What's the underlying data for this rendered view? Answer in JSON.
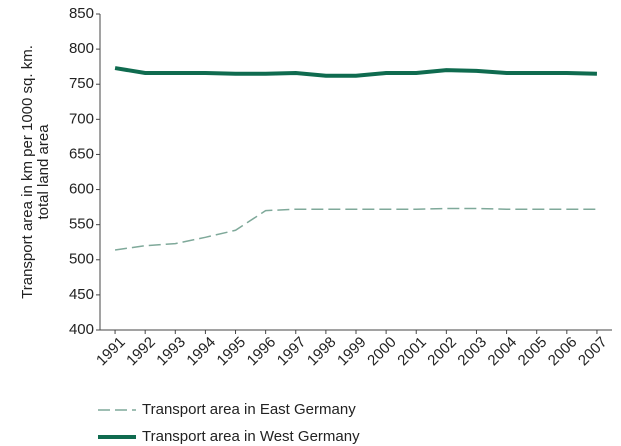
{
  "chart_data": {
    "type": "line",
    "ylabel": [
      "Transport area in km per 1000 sq. km.",
      "total land area"
    ],
    "categories": [
      "1991",
      "1992",
      "1993",
      "1994",
      "1995",
      "1996",
      "1997",
      "1998",
      "1999",
      "2000",
      "2001",
      "2002",
      "2003",
      "2004",
      "2005",
      "2006",
      "2007"
    ],
    "series": [
      {
        "name": "Transport area in East Germany",
        "color": "#7fa99a",
        "dashed": true,
        "values": [
          514,
          520,
          523,
          532,
          542,
          570,
          572,
          572,
          572,
          572,
          572,
          573,
          573,
          572,
          572,
          572,
          572
        ]
      },
      {
        "name": "Transport area in West Germany",
        "color": "#0f6b4f",
        "dashed": false,
        "values": [
          773,
          766,
          766,
          766,
          765,
          765,
          766,
          762,
          762,
          766,
          766,
          770,
          769,
          766,
          766,
          766,
          765
        ]
      }
    ],
    "ylim": [
      400,
      850
    ],
    "yticks": [
      400,
      450,
      500,
      550,
      600,
      650,
      700,
      750,
      800,
      850
    ],
    "grid": false
  }
}
